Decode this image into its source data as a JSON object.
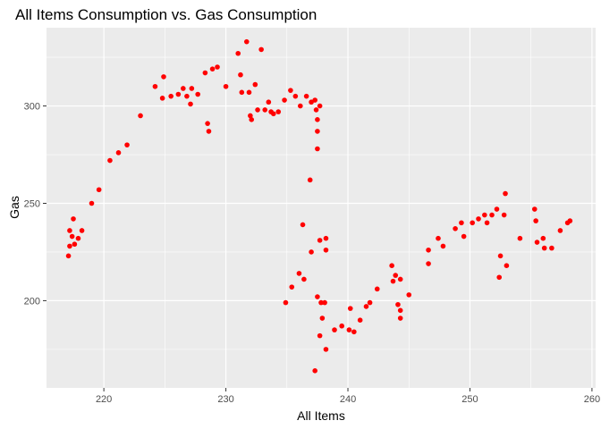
{
  "chart_data": {
    "type": "scatter",
    "title": "All Items Consumption vs. Gas Consumption",
    "xlabel": "All Items",
    "ylabel": "Gas",
    "xlim": [
      215.3,
      260.3
    ],
    "ylim": [
      155.2,
      340.2
    ],
    "x_ticks": [
      220,
      230,
      240,
      250,
      260
    ],
    "y_ticks": [
      200,
      250,
      300
    ],
    "x_minor": [
      225,
      235,
      245,
      255
    ],
    "y_minor": [
      175,
      225,
      275,
      325
    ],
    "grid": true,
    "background": "#ebebeb",
    "grid_color": "#ffffff",
    "point_color": "#ff0000",
    "points": [
      [
        217.1,
        223
      ],
      [
        217.2,
        236
      ],
      [
        217.2,
        228
      ],
      [
        217.4,
        233
      ],
      [
        217.5,
        242
      ],
      [
        217.6,
        229
      ],
      [
        217.9,
        232
      ],
      [
        218.2,
        236
      ],
      [
        219.0,
        250
      ],
      [
        219.6,
        257
      ],
      [
        220.5,
        272
      ],
      [
        221.2,
        276
      ],
      [
        221.9,
        280
      ],
      [
        223.0,
        295
      ],
      [
        224.2,
        310
      ],
      [
        224.8,
        304
      ],
      [
        224.9,
        315
      ],
      [
        225.5,
        305
      ],
      [
        226.1,
        306
      ],
      [
        226.5,
        309
      ],
      [
        226.8,
        305
      ],
      [
        227.1,
        301
      ],
      [
        227.2,
        309
      ],
      [
        227.7,
        306
      ],
      [
        228.3,
        317
      ],
      [
        228.5,
        291
      ],
      [
        228.6,
        287
      ],
      [
        228.9,
        319
      ],
      [
        229.3,
        320
      ],
      [
        230.0,
        310
      ],
      [
        231.0,
        327
      ],
      [
        231.2,
        316
      ],
      [
        231.3,
        307
      ],
      [
        231.7,
        333
      ],
      [
        231.9,
        307
      ],
      [
        232.0,
        295
      ],
      [
        232.1,
        293
      ],
      [
        232.4,
        311
      ],
      [
        232.6,
        298
      ],
      [
        232.9,
        329
      ],
      [
        233.2,
        298
      ],
      [
        233.5,
        302
      ],
      [
        233.7,
        297
      ],
      [
        233.9,
        296
      ],
      [
        234.3,
        297
      ],
      [
        234.8,
        303
      ],
      [
        234.9,
        199
      ],
      [
        235.3,
        308
      ],
      [
        235.4,
        207
      ],
      [
        235.7,
        305
      ],
      [
        236.0,
        214
      ],
      [
        236.1,
        300
      ],
      [
        236.3,
        239
      ],
      [
        236.4,
        211
      ],
      [
        236.6,
        305
      ],
      [
        236.9,
        262
      ],
      [
        237.0,
        302
      ],
      [
        237.0,
        225
      ],
      [
        237.3,
        303
      ],
      [
        237.3,
        164
      ],
      [
        237.4,
        298
      ],
      [
        237.5,
        202
      ],
      [
        237.5,
        287
      ],
      [
        237.5,
        278
      ],
      [
        237.5,
        293
      ],
      [
        237.7,
        300
      ],
      [
        237.7,
        182
      ],
      [
        237.7,
        231
      ],
      [
        237.8,
        199
      ],
      [
        237.9,
        191
      ],
      [
        238.1,
        199
      ],
      [
        238.2,
        232
      ],
      [
        238.2,
        226
      ],
      [
        238.2,
        175
      ],
      [
        238.9,
        185
      ],
      [
        239.5,
        187
      ],
      [
        240.1,
        185
      ],
      [
        240.2,
        196
      ],
      [
        240.5,
        184
      ],
      [
        241.0,
        190
      ],
      [
        241.5,
        197
      ],
      [
        241.8,
        199
      ],
      [
        242.4,
        206
      ],
      [
        243.6,
        218
      ],
      [
        243.7,
        210
      ],
      [
        243.9,
        213
      ],
      [
        244.1,
        198
      ],
      [
        244.3,
        211
      ],
      [
        244.3,
        191
      ],
      [
        244.3,
        195
      ],
      [
        245.0,
        203
      ],
      [
        246.6,
        219
      ],
      [
        246.6,
        226
      ],
      [
        247.4,
        232
      ],
      [
        247.8,
        228
      ],
      [
        248.8,
        237
      ],
      [
        249.3,
        240
      ],
      [
        249.5,
        233
      ],
      [
        250.2,
        240
      ],
      [
        250.7,
        242
      ],
      [
        251.2,
        244
      ],
      [
        251.4,
        240
      ],
      [
        251.8,
        244
      ],
      [
        252.2,
        247
      ],
      [
        252.4,
        212
      ],
      [
        252.5,
        223
      ],
      [
        252.8,
        244
      ],
      [
        252.9,
        255
      ],
      [
        253.0,
        218
      ],
      [
        254.1,
        232
      ],
      [
        255.3,
        247
      ],
      [
        255.4,
        241
      ],
      [
        255.5,
        230
      ],
      [
        256.0,
        232
      ],
      [
        256.1,
        227
      ],
      [
        256.7,
        227
      ],
      [
        257.4,
        236
      ],
      [
        258.0,
        240
      ],
      [
        258.2,
        241
      ]
    ]
  }
}
